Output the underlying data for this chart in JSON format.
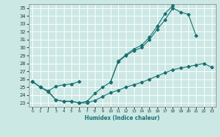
{
  "xlabel": "Humidex (Indice chaleur)",
  "bg_color": "#cce8e5",
  "grid_color": "#ffffff",
  "line_color": "#1a7070",
  "xlim": [
    -0.5,
    23.5
  ],
  "ylim": [
    22.5,
    35.5
  ],
  "xticks": [
    0,
    1,
    2,
    3,
    4,
    5,
    6,
    7,
    8,
    9,
    10,
    11,
    12,
    13,
    14,
    15,
    16,
    17,
    18,
    19,
    20,
    21,
    22,
    23
  ],
  "yticks": [
    23,
    24,
    25,
    26,
    27,
    28,
    29,
    30,
    31,
    32,
    33,
    34,
    35
  ],
  "line1_y": [
    25.7,
    25.0,
    24.4,
    23.4,
    23.2,
    23.2,
    23.0,
    23.2,
    24.2,
    25.0,
    25.6,
    28.2,
    29.0,
    29.6,
    30.0,
    31.0,
    32.3,
    33.5,
    35.0,
    34.5,
    34.2,
    31.5,
    null,
    null
  ],
  "line2_seg1_x": [
    0,
    1,
    2,
    3,
    4,
    5,
    6
  ],
  "line2_seg1_y": [
    25.7,
    25.0,
    24.5,
    25.1,
    25.3,
    25.4,
    25.7
  ],
  "line2_seg2_x": [
    10,
    11,
    12,
    13,
    14,
    15,
    16,
    17,
    18
  ],
  "line2_seg2_y": [
    25.6,
    28.3,
    29.1,
    29.8,
    30.3,
    31.3,
    32.7,
    34.3,
    35.3
  ],
  "line3_y": [
    25.7,
    25.0,
    24.5,
    23.4,
    23.2,
    23.2,
    23.0,
    23.0,
    23.3,
    23.8,
    24.3,
    24.6,
    25.0,
    25.3,
    25.6,
    26.0,
    26.4,
    26.8,
    27.2,
    27.4,
    27.6,
    27.8,
    28.0,
    27.5
  ]
}
